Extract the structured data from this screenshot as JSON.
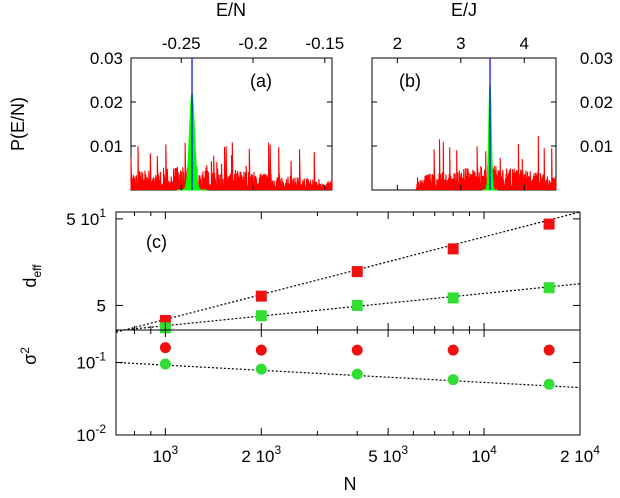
{
  "chart_data": [
    {
      "id": "a",
      "type": "histogram",
      "panel_label": "(a)",
      "xlabel": "E/N",
      "ylabel": "P(E/N)",
      "xlim": [
        -0.285,
        -0.145
      ],
      "ylim": [
        0,
        0.03
      ],
      "x_ticks": [
        {
          "v": -0.25,
          "label": "-0.25"
        },
        {
          "v": -0.2,
          "label": "-0.2"
        },
        {
          "v": -0.15,
          "label": "-0.15"
        }
      ],
      "y_ticks": [
        {
          "v": 0.01,
          "label": "0.01"
        },
        {
          "v": 0.02,
          "label": "0.02"
        },
        {
          "v": 0.03,
          "label": "0.03"
        }
      ],
      "vline_x": -0.2425,
      "peak": {
        "center": -0.2425,
        "width": 0.0035,
        "height": 0.022
      },
      "background": {
        "min": -0.285,
        "max": -0.145,
        "typical": 0.004,
        "max_value": 0.011,
        "seed": 7
      },
      "colors": {
        "noise": "#ff0000",
        "peak": "#00ff00",
        "line": "#0000ff"
      }
    },
    {
      "id": "b",
      "type": "histogram",
      "panel_label": "(b)",
      "xlabel": "E/J",
      "ylabel": "",
      "xlim": [
        1.6,
        4.5
      ],
      "ylim": [
        0,
        0.03
      ],
      "x_ticks": [
        {
          "v": 2,
          "label": "2"
        },
        {
          "v": 3,
          "label": "3"
        },
        {
          "v": 4,
          "label": "4"
        }
      ],
      "y_ticks": [
        {
          "v": 0.01,
          "label": "0.01"
        },
        {
          "v": 0.02,
          "label": "0.02"
        },
        {
          "v": 0.03,
          "label": "0.03"
        }
      ],
      "vline_x": 3.46,
      "peak": {
        "center": 3.46,
        "width": 0.04,
        "height": 0.024
      },
      "background": {
        "min": 2.3,
        "max": 4.5,
        "typical": 0.004,
        "max_value": 0.013,
        "seed": 11
      },
      "colors": {
        "noise": "#ff0000",
        "peak": "#00ff00",
        "line": "#0000ff"
      }
    },
    {
      "id": "c",
      "type": "scatter",
      "panel_label": "(c)",
      "xlabel": "N",
      "ylabel": "d_eff",
      "xscale": "log",
      "yscale": "log",
      "xlim": [
        700,
        20000
      ],
      "ylim": [
        2.6,
        60
      ],
      "x_ticks": [
        {
          "v": 1000,
          "base": "10",
          "exp": "3",
          "mult": ""
        },
        {
          "v": 2000,
          "base": "10",
          "exp": "3",
          "mult": "2 "
        },
        {
          "v": 5000,
          "base": "10",
          "exp": "3",
          "mult": "5 "
        },
        {
          "v": 10000,
          "base": "10",
          "exp": "4",
          "mult": ""
        },
        {
          "v": 20000,
          "base": "10",
          "exp": "4",
          "mult": "2 "
        }
      ],
      "y_ticks": [
        {
          "v": 5,
          "plain": "5"
        },
        {
          "v": 50,
          "mult": "5 ",
          "base": "10",
          "exp": "1"
        }
      ],
      "series": [
        {
          "marker": "square",
          "color": "#ee1111",
          "x": [
            1000,
            2000,
            4000,
            8000,
            16000
          ],
          "y": [
            3.35,
            6.4,
            12.3,
            22.5,
            43.5
          ],
          "fit": [
            {
              "x": 700,
              "y": 2.45
            },
            {
              "x": 20000,
              "y": 60
            }
          ]
        },
        {
          "marker": "square",
          "color": "#33dd33",
          "x": [
            1000,
            2000,
            4000,
            8000,
            16000
          ],
          "y": [
            2.75,
            3.8,
            5.0,
            6.1,
            8.0
          ],
          "fit": [
            {
              "x": 700,
              "y": 2.55
            },
            {
              "x": 20000,
              "y": 8.9
            }
          ]
        }
      ]
    },
    {
      "id": "d",
      "type": "scatter",
      "panel_label": "",
      "xlabel": "N",
      "ylabel": "σ²",
      "xscale": "log",
      "yscale": "log",
      "xlim": [
        700,
        20000
      ],
      "ylim": [
        0.01,
        0.28
      ],
      "x_ticks": [
        {
          "v": 1000,
          "base": "10",
          "exp": "3",
          "mult": ""
        },
        {
          "v": 2000,
          "base": "10",
          "exp": "3",
          "mult": "2 "
        },
        {
          "v": 5000,
          "base": "10",
          "exp": "3",
          "mult": "5 "
        },
        {
          "v": 10000,
          "base": "10",
          "exp": "4",
          "mult": ""
        },
        {
          "v": 20000,
          "base": "10",
          "exp": "4",
          "mult": "2 "
        }
      ],
      "y_ticks": [
        {
          "v": 0.01,
          "base": "10",
          "exp": "-2"
        },
        {
          "v": 0.1,
          "base": "10",
          "exp": "-1"
        }
      ],
      "series": [
        {
          "marker": "circle",
          "color": "#ee1111",
          "x": [
            1000,
            2000,
            4000,
            8000,
            16000
          ],
          "y": [
            0.16,
            0.148,
            0.148,
            0.148,
            0.148
          ],
          "fit": []
        },
        {
          "marker": "circle",
          "color": "#33dd33",
          "x": [
            1000,
            2000,
            4000,
            8000,
            16000
          ],
          "y": [
            0.095,
            0.081,
            0.069,
            0.058,
            0.05
          ],
          "fit": [
            {
              "x": 700,
              "y": 0.1
            },
            {
              "x": 20000,
              "y": 0.045
            }
          ]
        }
      ]
    }
  ]
}
